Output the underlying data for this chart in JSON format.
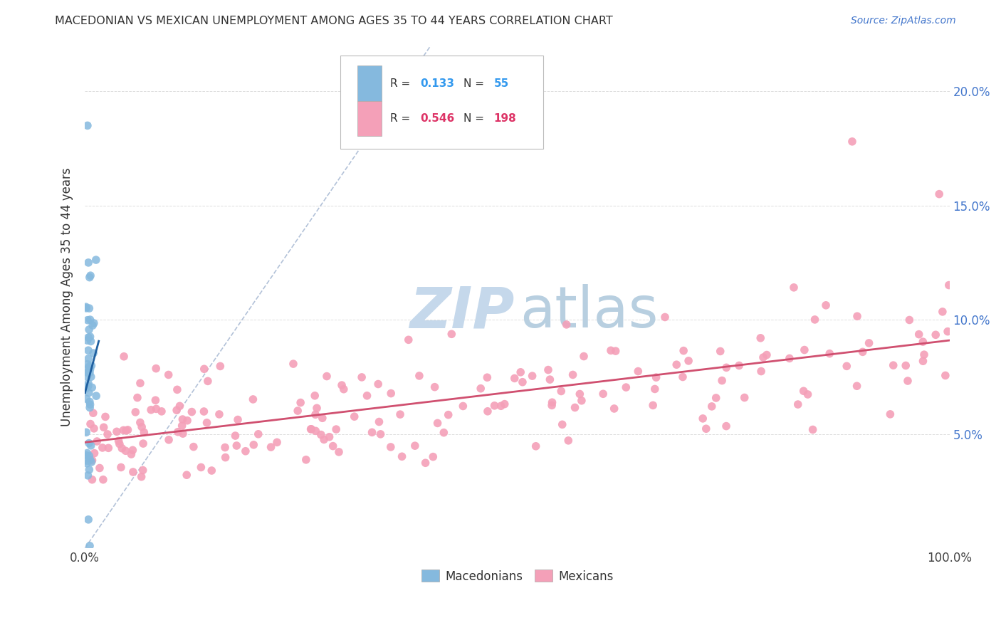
{
  "title": "MACEDONIAN VS MEXICAN UNEMPLOYMENT AMONG AGES 35 TO 44 YEARS CORRELATION CHART",
  "source": "Source: ZipAtlas.com",
  "ylabel": "Unemployment Among Ages 35 to 44 years",
  "xlim": [
    0,
    1.0
  ],
  "ylim": [
    0,
    0.22
  ],
  "xtick_positions": [
    0.0,
    0.25,
    0.5,
    0.75,
    1.0
  ],
  "xtick_labels": [
    "0.0%",
    "",
    "",
    "",
    "100.0%"
  ],
  "ytick_labels": [
    "5.0%",
    "10.0%",
    "15.0%",
    "20.0%"
  ],
  "yticks": [
    0.05,
    0.1,
    0.15,
    0.2
  ],
  "macedonian_R": 0.133,
  "macedonian_N": 55,
  "mexican_R": 0.546,
  "mexican_N": 198,
  "macedonian_color": "#85b9de",
  "mexican_color": "#f4a0b8",
  "macedonian_line_color": "#2060a0",
  "mexican_line_color": "#d05070",
  "diagonal_color": "#aabbd4",
  "background_color": "#ffffff",
  "watermark_zip_color": "#c5d8eb",
  "watermark_atlas_color": "#b8cfe0",
  "grid_color": "#dddddd",
  "title_color": "#333333",
  "source_color": "#4477cc",
  "ytick_color": "#4477cc",
  "legend_R_color": "#333333",
  "legend_val_mac_color": "#3399ee",
  "legend_val_mex_color": "#dd3366"
}
